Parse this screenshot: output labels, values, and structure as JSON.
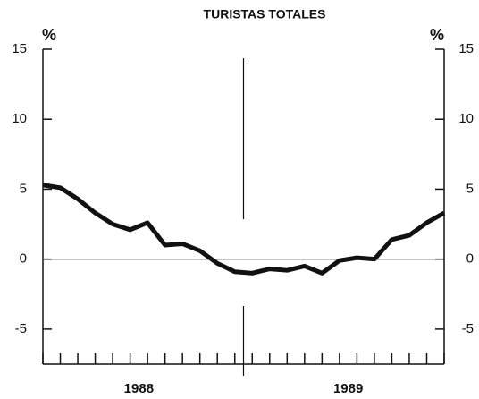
{
  "chart_data": {
    "type": "line",
    "title": "TURISTAS TOTALES",
    "y_unit": "%",
    "y2_unit": "%",
    "x": [
      1,
      2,
      3,
      4,
      5,
      6,
      7,
      8,
      9,
      10,
      11,
      12,
      13,
      14,
      15,
      16,
      17,
      18,
      19,
      20,
      21,
      22,
      23,
      24
    ],
    "xlim": [
      1,
      24
    ],
    "xticks": [
      {
        "value": 6.5,
        "label": "1988"
      },
      {
        "value": 18.5,
        "label": "1989"
      }
    ],
    "minor_xticks": [
      1,
      2,
      3,
      4,
      5,
      6,
      7,
      8,
      9,
      10,
      11,
      12,
      13,
      14,
      15,
      16,
      17,
      18,
      19,
      20,
      21,
      22,
      23,
      24
    ],
    "divider_x": 12.5,
    "series": [
      {
        "color": "#111111",
        "values": [
          5.3,
          5.1,
          4.3,
          3.3,
          2.5,
          2.1,
          2.6,
          1.0,
          1.1,
          0.6,
          -0.3,
          -0.9,
          -1.0,
          -0.7,
          -0.8,
          -0.5,
          -1.0,
          -0.1,
          0.1,
          0.0,
          1.4,
          1.7,
          2.6,
          3.3
        ]
      }
    ],
    "ylim": [
      -7.5,
      15
    ],
    "yticks": [
      15,
      10,
      5,
      0,
      -5
    ],
    "y2lim": [
      -7.5,
      15
    ],
    "y2ticks": [
      15,
      10,
      5,
      0,
      -5
    ],
    "zero_line": true
  }
}
